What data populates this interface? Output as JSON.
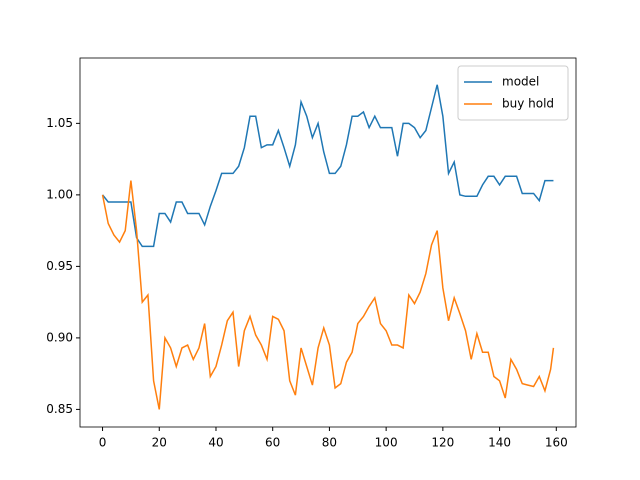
{
  "chart_data": {
    "type": "line",
    "x": [
      0,
      2,
      4,
      6,
      8,
      10,
      12,
      14,
      16,
      18,
      20,
      22,
      24,
      26,
      28,
      30,
      32,
      34,
      36,
      38,
      40,
      42,
      44,
      46,
      48,
      50,
      52,
      54,
      56,
      58,
      60,
      62,
      64,
      66,
      68,
      70,
      72,
      74,
      76,
      78,
      80,
      82,
      84,
      86,
      88,
      90,
      92,
      94,
      96,
      98,
      100,
      102,
      104,
      106,
      108,
      110,
      112,
      114,
      116,
      118,
      120,
      122,
      124,
      126,
      128,
      130,
      132,
      134,
      136,
      138,
      140,
      142,
      144,
      146,
      148,
      150,
      152,
      154,
      156,
      158,
      159
    ],
    "series": [
      {
        "name": "model",
        "color": "#1f77b4",
        "values": [
          1.0,
          0.995,
          0.995,
          0.995,
          0.995,
          0.995,
          0.97,
          0.964,
          0.964,
          0.964,
          0.987,
          0.987,
          0.981,
          0.995,
          0.995,
          0.987,
          0.987,
          0.987,
          0.979,
          0.992,
          1.003,
          1.015,
          1.015,
          1.015,
          1.02,
          1.033,
          1.055,
          1.055,
          1.033,
          1.035,
          1.035,
          1.045,
          1.033,
          1.02,
          1.035,
          1.065,
          1.055,
          1.04,
          1.05,
          1.03,
          1.015,
          1.015,
          1.02,
          1.035,
          1.055,
          1.055,
          1.058,
          1.047,
          1.055,
          1.047,
          1.047,
          1.047,
          1.027,
          1.05,
          1.05,
          1.047,
          1.04,
          1.045,
          1.061,
          1.077,
          1.055,
          1.015,
          1.023,
          1.0,
          0.999,
          0.999,
          0.999,
          1.007,
          1.013,
          1.013,
          1.007,
          1.013,
          1.013,
          1.013,
          1.001,
          1.001,
          1.001,
          0.996,
          1.01,
          1.01,
          1.01
        ]
      },
      {
        "name": "buy hold",
        "color": "#ff7f0e",
        "values": [
          1.0,
          0.98,
          0.972,
          0.967,
          0.975,
          1.01,
          0.975,
          0.925,
          0.93,
          0.87,
          0.85,
          0.9,
          0.893,
          0.88,
          0.893,
          0.895,
          0.885,
          0.893,
          0.91,
          0.873,
          0.88,
          0.895,
          0.912,
          0.918,
          0.88,
          0.905,
          0.915,
          0.902,
          0.895,
          0.885,
          0.915,
          0.913,
          0.905,
          0.87,
          0.86,
          0.893,
          0.88,
          0.867,
          0.893,
          0.907,
          0.895,
          0.865,
          0.868,
          0.883,
          0.89,
          0.91,
          0.915,
          0.922,
          0.928,
          0.91,
          0.905,
          0.895,
          0.895,
          0.893,
          0.93,
          0.924,
          0.932,
          0.945,
          0.965,
          0.975,
          0.935,
          0.912,
          0.928,
          0.917,
          0.905,
          0.885,
          0.903,
          0.89,
          0.89,
          0.873,
          0.87,
          0.858,
          0.885,
          0.878,
          0.868,
          0.867,
          0.866,
          0.873,
          0.863,
          0.878,
          0.893
        ]
      }
    ],
    "xlim": [
      -7.95,
      166.95
    ],
    "xticks": [
      0,
      20,
      40,
      60,
      80,
      100,
      120,
      140,
      160
    ],
    "ylim": [
      0.8377,
      1.0957
    ],
    "yticks": [
      0.85,
      {
        "value": 0.9,
        "label": "0.90"
      },
      0.95,
      {
        "value": 1.0,
        "label": "1.00"
      },
      1.05
    ],
    "legend": "upper right",
    "grid": false
  }
}
